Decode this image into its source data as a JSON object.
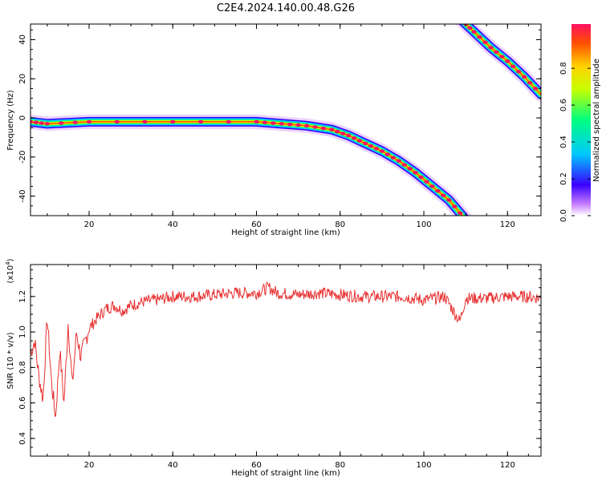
{
  "title": "C2E4.2024.140.00.48.G26",
  "chart_data": [
    {
      "type": "heatmap",
      "xlabel": "Height of straight line (km)",
      "ylabel": "Frequency (Hz)",
      "xlim": [
        6,
        128
      ],
      "ylim": [
        -50,
        48
      ],
      "xticks": [
        20,
        40,
        60,
        80,
        100,
        120
      ],
      "yticks": [
        40,
        20,
        0,
        -20,
        -40
      ],
      "colorbar": {
        "label": "Normalized spectral amplitude",
        "range": [
          0,
          1
        ],
        "ticks": [
          "0.0",
          "0.2",
          "0.4",
          "0.6",
          "0.8"
        ],
        "colors": [
          "#ffffff",
          "#c77dff",
          "#3a00ff",
          "#00c8ff",
          "#00ff80",
          "#c8ff00",
          "#ffd200",
          "#ff5000",
          "#ff1060"
        ]
      },
      "tracks": [
        {
          "x": [
            6,
            10,
            20,
            40,
            60,
            66,
            72,
            78,
            82,
            86,
            90,
            94,
            98,
            102,
            106,
            110
          ],
          "y": [
            -2,
            -3,
            -2,
            -2,
            -2,
            -3,
            -4,
            -6,
            -9,
            -13,
            -17,
            -22,
            -28,
            -35,
            -42,
            -52
          ]
        },
        {
          "x": [
            109,
            112,
            116,
            120,
            124,
            128
          ],
          "y": [
            50,
            44,
            36,
            29,
            21,
            12
          ]
        }
      ]
    },
    {
      "type": "line",
      "xlabel": "Height of straight line (km)",
      "ylabel": "SNR (10 * v/v)",
      "multiplier": "(x10",
      "multiplier_exp": "4",
      "multiplier_close": ")",
      "xlim": [
        6,
        128
      ],
      "ylim": [
        0.3,
        1.38
      ],
      "xticks": [
        20,
        40,
        60,
        80,
        100,
        120
      ],
      "yticks": [
        "1.2",
        "1.0",
        "0.8",
        "0.6",
        "0.4"
      ],
      "series": [
        {
          "color": "#e83030",
          "x": [
            6,
            7,
            8,
            9,
            10,
            11,
            12,
            13,
            14,
            15,
            16,
            17,
            18,
            20,
            22,
            24,
            26,
            28,
            30,
            33,
            36,
            40,
            45,
            50,
            55,
            60,
            63,
            65,
            70,
            75,
            80,
            85,
            90,
            95,
            100,
            105,
            108.6,
            110,
            115,
            120,
            125,
            128
          ],
          "y": [
            0.88,
            0.95,
            0.75,
            0.62,
            1.08,
            0.72,
            0.52,
            0.9,
            0.6,
            1.05,
            0.7,
            1.0,
            0.86,
            1.02,
            1.08,
            1.13,
            1.15,
            1.12,
            1.15,
            1.17,
            1.18,
            1.2,
            1.2,
            1.21,
            1.22,
            1.22,
            1.25,
            1.22,
            1.21,
            1.22,
            1.21,
            1.2,
            1.2,
            1.2,
            1.18,
            1.2,
            1.06,
            1.19,
            1.19,
            1.2,
            1.2,
            1.19
          ]
        }
      ]
    }
  ]
}
